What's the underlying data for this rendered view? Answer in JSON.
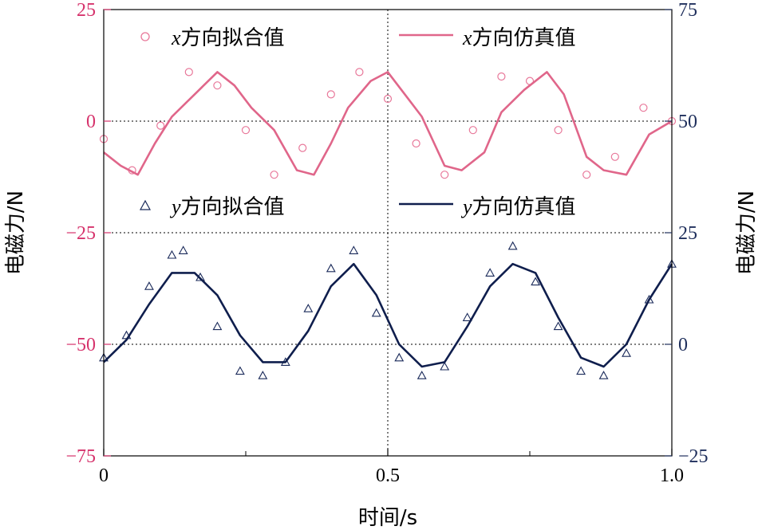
{
  "chart_data": {
    "type": "line",
    "xlabel": "时间/s",
    "ylabel_left": "电磁力/N",
    "ylabel_right": "电磁力/N",
    "x_range": [
      0,
      1.0
    ],
    "x_ticks": [
      0,
      0.5,
      1.0
    ],
    "x_tick_labels": [
      "0",
      "0.5",
      "1.0"
    ],
    "ylim_left": [
      -75,
      25
    ],
    "y_ticks_left": [
      25,
      0,
      -25,
      -50,
      -75
    ],
    "y_tick_labels_left": [
      "25",
      "0",
      "−25",
      "−50",
      "−75"
    ],
    "ylim_right": [
      -25,
      75
    ],
    "y_ticks_right": [
      75,
      50,
      25,
      0,
      -25
    ],
    "y_tick_labels_right": [
      "75",
      "50",
      "25",
      "0",
      "−25"
    ],
    "grid": "dotted lines at y=0, y=−25, y=−50 (left axis) and x=0.5",
    "legend": [
      {
        "var": "x",
        "text": "方向拟合值",
        "style": "circle-marker"
      },
      {
        "var": "x",
        "text": "方向仿真值",
        "style": "line"
      },
      {
        "var": "y",
        "text": "方向拟合值",
        "style": "triangle-marker"
      },
      {
        "var": "y",
        "text": "方向仿真值",
        "style": "line"
      }
    ],
    "series": [
      {
        "name": "x方向拟合值",
        "axis": "left",
        "kind": "markers",
        "marker": "circle",
        "color": "#e8789a",
        "x": [
          0.0,
          0.05,
          0.1,
          0.15,
          0.2,
          0.25,
          0.3,
          0.35,
          0.4,
          0.45,
          0.5,
          0.55,
          0.6,
          0.65,
          0.7,
          0.75,
          0.8,
          0.85,
          0.9,
          0.95,
          1.0
        ],
        "y": [
          -4,
          -11,
          -1,
          11,
          8,
          -2,
          -12,
          -6,
          6,
          11,
          5,
          -5,
          -12,
          -2,
          10,
          9,
          -2,
          -12,
          -8,
          3,
          0
        ]
      },
      {
        "name": "x方向仿真值",
        "axis": "left",
        "kind": "line",
        "color": "#e0668a",
        "x": [
          0.0,
          0.03,
          0.06,
          0.09,
          0.12,
          0.16,
          0.2,
          0.23,
          0.26,
          0.3,
          0.34,
          0.37,
          0.4,
          0.43,
          0.47,
          0.5,
          0.53,
          0.56,
          0.6,
          0.63,
          0.67,
          0.7,
          0.74,
          0.78,
          0.81,
          0.85,
          0.88,
          0.92,
          0.96,
          1.0
        ],
        "y": [
          -7,
          -10,
          -12,
          -5,
          1,
          6,
          11,
          8,
          3,
          -2,
          -11,
          -12,
          -5,
          3,
          9,
          11,
          6,
          1,
          -10,
          -11,
          -7,
          2,
          7,
          11,
          6,
          -8,
          -11,
          -12,
          -3,
          0
        ]
      },
      {
        "name": "y方向拟合值",
        "axis": "right",
        "kind": "markers",
        "marker": "triangle",
        "color": "#1a2a5a",
        "x": [
          0.0,
          0.04,
          0.08,
          0.12,
          0.14,
          0.17,
          0.2,
          0.24,
          0.28,
          0.32,
          0.36,
          0.4,
          0.44,
          0.48,
          0.52,
          0.56,
          0.6,
          0.64,
          0.68,
          0.72,
          0.76,
          0.8,
          0.84,
          0.88,
          0.92,
          0.96,
          1.0
        ],
        "y": [
          -3,
          2,
          13,
          20,
          21,
          15,
          4,
          -6,
          -7,
          -4,
          8,
          17,
          21,
          7,
          -3,
          -7,
          -5,
          6,
          16,
          22,
          14,
          4,
          -6,
          -7,
          -2,
          10,
          18
        ]
      },
      {
        "name": "y方向仿真值",
        "axis": "right",
        "kind": "line",
        "color": "#0f1e4d",
        "x": [
          0.0,
          0.04,
          0.08,
          0.12,
          0.16,
          0.2,
          0.24,
          0.28,
          0.32,
          0.36,
          0.4,
          0.44,
          0.48,
          0.52,
          0.56,
          0.6,
          0.64,
          0.68,
          0.72,
          0.76,
          0.8,
          0.84,
          0.88,
          0.92,
          0.96,
          1.0
        ],
        "y": [
          -4,
          1,
          9,
          16,
          16,
          11,
          2,
          -4,
          -4,
          3,
          13,
          18,
          11,
          0,
          -5,
          -4,
          4,
          13,
          18,
          16,
          6,
          -3,
          -5,
          0,
          10,
          18
        ]
      }
    ]
  },
  "colors": {
    "left_axis": "#d6336c",
    "right_axis": "#1f2f5c",
    "x_marker": "#e8789a",
    "x_line": "#e0668a",
    "y_marker": "#1a2a5a",
    "y_line": "#0f1e4d"
  }
}
